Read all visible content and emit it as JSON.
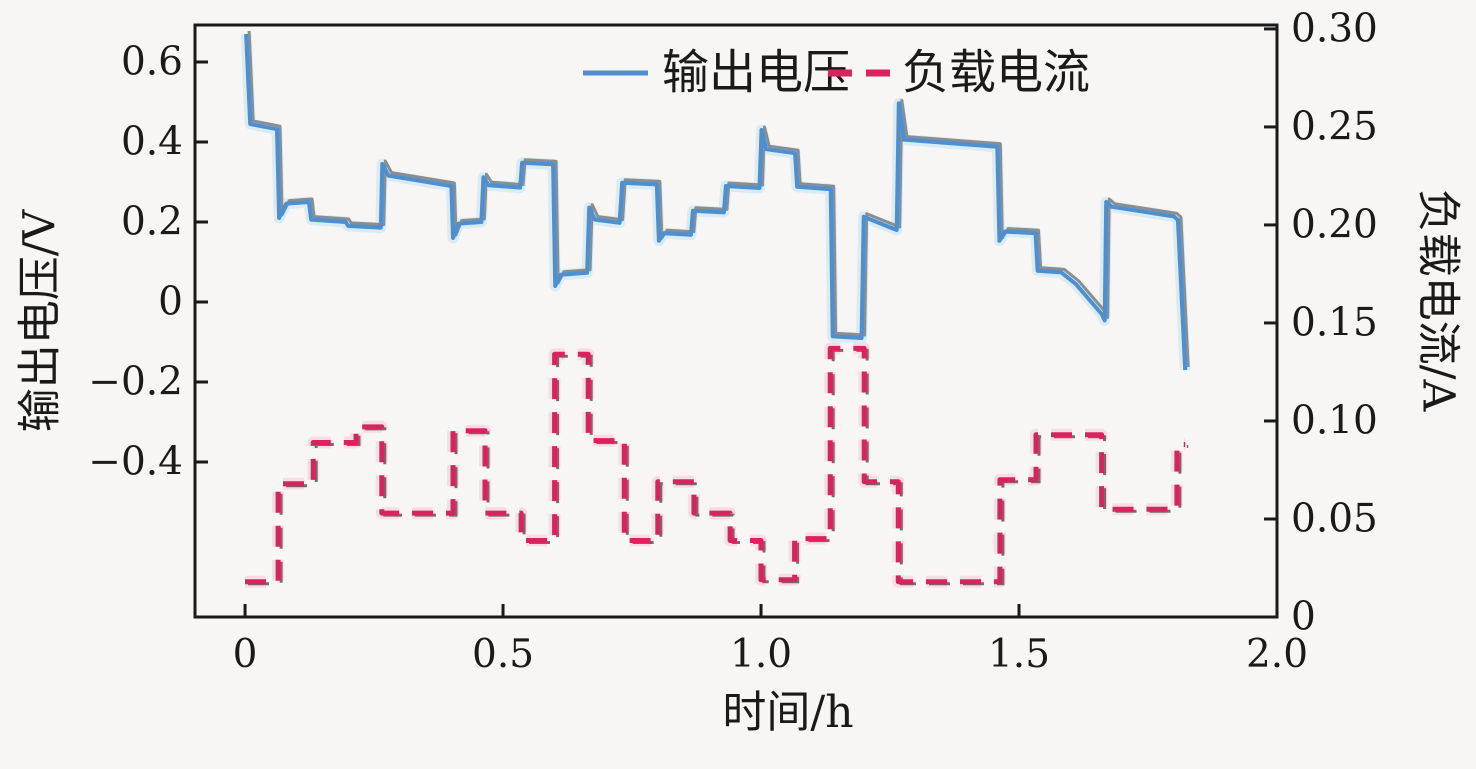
{
  "figure": {
    "background": "#f7f6f4",
    "spine_color": "#1a1a1a"
  },
  "legend": {
    "items": [
      {
        "label": "输出电压",
        "style": "solid",
        "color": "#4e8fd0"
      },
      {
        "label": "负载电流",
        "style": "dashed",
        "color": "#d8245e"
      }
    ]
  },
  "chart_data": {
    "type": "line",
    "title": "",
    "xlabel": "时间/h",
    "grid": false,
    "legend_position": "upper center inside",
    "x_axis": {
      "lim": [
        -0.097,
        2.0
      ],
      "ticks": [
        0,
        0.5,
        1.0,
        1.5,
        2.0
      ],
      "tick_labels": [
        "0",
        "0.5",
        "1.0",
        "1.5",
        "2.0"
      ]
    },
    "left_axis": {
      "label": "输出电压/V",
      "lim": [
        -0.7875,
        0.6925
      ],
      "ticks": [
        0.6,
        0.4,
        0.2,
        0,
        -0.2,
        -0.4
      ],
      "tick_labels": [
        "0.6",
        "0.4",
        "0.2",
        "0",
        "−0.2",
        "−0.4"
      ]
    },
    "right_axis": {
      "label": "负载电流/A",
      "lim": [
        0,
        0.302
      ],
      "ticks": [
        0.3,
        0.25,
        0.2,
        0.15,
        0.1,
        0.05,
        0
      ],
      "tick_labels": [
        "0.30",
        "0.25",
        "0.20",
        "0.15",
        "0.10",
        "0.05",
        "0"
      ]
    },
    "series": [
      {
        "name": "输出电压",
        "axis": "left",
        "style": "solid",
        "color": "#4e8fd0",
        "halo_color": "#cdeaf8",
        "shadow_color": "#8d8d8d",
        "points": [
          [
            0.002,
            0.67
          ],
          [
            0.01,
            0.445
          ],
          [
            0.062,
            0.432
          ],
          [
            0.066,
            0.21
          ],
          [
            0.08,
            0.246
          ],
          [
            0.124,
            0.25
          ],
          [
            0.128,
            0.206
          ],
          [
            0.195,
            0.2
          ],
          [
            0.2,
            0.19
          ],
          [
            0.263,
            0.186
          ],
          [
            0.266,
            0.345
          ],
          [
            0.278,
            0.316
          ],
          [
            0.4,
            0.29
          ],
          [
            0.403,
            0.16
          ],
          [
            0.414,
            0.196
          ],
          [
            0.458,
            0.2
          ],
          [
            0.462,
            0.312
          ],
          [
            0.472,
            0.292
          ],
          [
            0.533,
            0.286
          ],
          [
            0.537,
            0.348
          ],
          [
            0.597,
            0.344
          ],
          [
            0.601,
            0.04
          ],
          [
            0.612,
            0.068
          ],
          [
            0.663,
            0.073
          ],
          [
            0.667,
            0.236
          ],
          [
            0.678,
            0.206
          ],
          [
            0.726,
            0.198
          ],
          [
            0.731,
            0.298
          ],
          [
            0.798,
            0.294
          ],
          [
            0.802,
            0.153
          ],
          [
            0.812,
            0.172
          ],
          [
            0.864,
            0.168
          ],
          [
            0.868,
            0.228
          ],
          [
            0.928,
            0.224
          ],
          [
            0.932,
            0.29
          ],
          [
            0.997,
            0.285
          ],
          [
            1.001,
            0.43
          ],
          [
            1.01,
            0.382
          ],
          [
            1.066,
            0.372
          ],
          [
            1.07,
            0.288
          ],
          [
            1.135,
            0.282
          ],
          [
            1.139,
            -0.086
          ],
          [
            1.195,
            -0.09
          ],
          [
            1.199,
            0.213
          ],
          [
            1.263,
            0.18
          ],
          [
            1.267,
            0.497
          ],
          [
            1.277,
            0.406
          ],
          [
            1.458,
            0.388
          ],
          [
            1.462,
            0.153
          ],
          [
            1.473,
            0.176
          ],
          [
            1.532,
            0.172
          ],
          [
            1.536,
            0.078
          ],
          [
            1.582,
            0.074
          ],
          [
            1.61,
            0.045
          ],
          [
            1.66,
            -0.03
          ],
          [
            1.666,
            -0.046
          ],
          [
            1.669,
            0.25
          ],
          [
            1.68,
            0.238
          ],
          [
            1.8,
            0.214
          ],
          [
            1.808,
            0.205
          ],
          [
            1.822,
            -0.17
          ]
        ]
      },
      {
        "name": "负载电流",
        "axis": "right",
        "style": "dashed",
        "color": "#d8245e",
        "halo_color": "#fbd3e3",
        "shadow_color": "#6e6e6e",
        "segments": [
          [
            0.0,
            0.064,
            0.018
          ],
          [
            0.064,
            0.132,
            0.068
          ],
          [
            0.132,
            0.215,
            0.089
          ],
          [
            0.215,
            0.265,
            0.097
          ],
          [
            0.265,
            0.403,
            0.053
          ],
          [
            0.403,
            0.465,
            0.095
          ],
          [
            0.465,
            0.535,
            0.053
          ],
          [
            0.535,
            0.6,
            0.039
          ],
          [
            0.6,
            0.665,
            0.134
          ],
          [
            0.665,
            0.735,
            0.09
          ],
          [
            0.735,
            0.8,
            0.039
          ],
          [
            0.8,
            0.87,
            0.069
          ],
          [
            0.87,
            0.94,
            0.053
          ],
          [
            0.94,
            1.0,
            0.039
          ],
          [
            1.0,
            1.065,
            0.019
          ],
          [
            1.065,
            1.134,
            0.04
          ],
          [
            1.134,
            1.2,
            0.137
          ],
          [
            1.2,
            1.266,
            0.069
          ],
          [
            1.266,
            1.463,
            0.018
          ],
          [
            1.463,
            1.533,
            0.07
          ],
          [
            1.533,
            1.66,
            0.093
          ],
          [
            1.66,
            1.806,
            0.055
          ],
          [
            1.806,
            1.822,
            0.088
          ]
        ]
      }
    ]
  }
}
